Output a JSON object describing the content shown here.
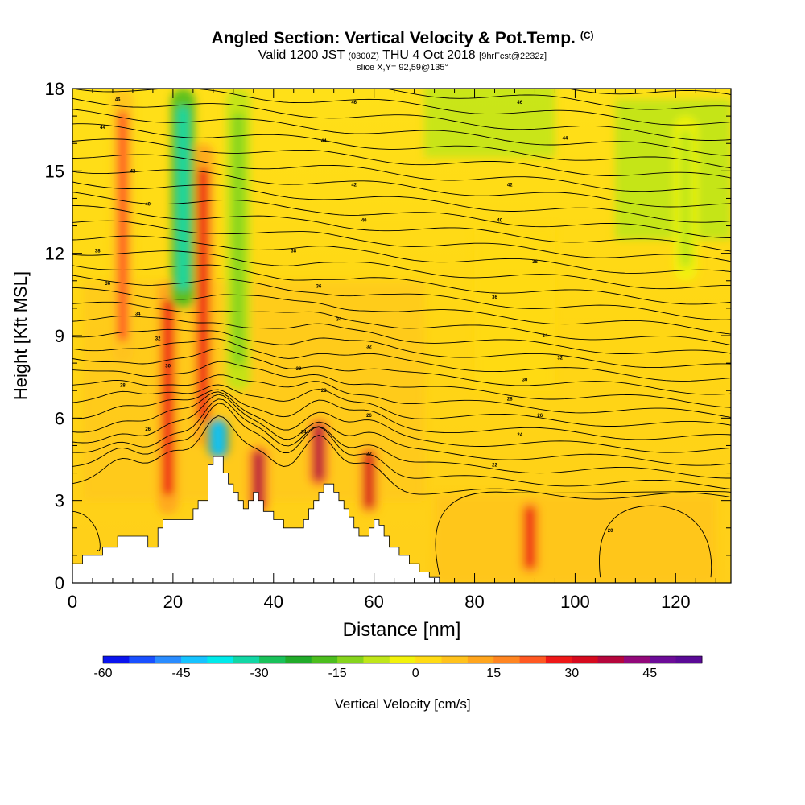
{
  "header": {
    "title_main": "Angled Section: Vertical Velocity & Pot.Temp.",
    "title_unit": "(C)",
    "valid_a": "Valid 1200 JST",
    "valid_b": "(0300Z)",
    "valid_c": "THU 4 Oct 2018",
    "valid_d": "[9hrFcst@2232z]",
    "slice": "slice X,Y= 92,59@135°"
  },
  "chart_data": {
    "type": "heatmap",
    "xlabel": "Distance [nm]",
    "ylabel": "Height [Kft MSL]",
    "xlim": [
      0,
      131
    ],
    "ylim": [
      0,
      18
    ],
    "xticks": [
      0,
      20,
      40,
      60,
      80,
      100,
      120
    ],
    "yticks": [
      0,
      3,
      6,
      9,
      12,
      15,
      18
    ],
    "colorbar": {
      "title": "Vertical Velocity [cm/s]",
      "tick_labels": [
        -60,
        -45,
        -30,
        -15,
        0,
        15,
        30,
        45
      ],
      "min": -60,
      "max": 55,
      "step": 5,
      "colors": [
        "#0a14ee",
        "#1950ff",
        "#2a8cff",
        "#16c3ff",
        "#00eaea",
        "#12d7a5",
        "#19c15a",
        "#21ab2a",
        "#4cbe1e",
        "#86d41d",
        "#bfe61a",
        "#f2f20c",
        "#ffdb14",
        "#ffc21c",
        "#ffa51d",
        "#ff8521",
        "#ff5822",
        "#ee1818",
        "#d60a1e",
        "#b5063c",
        "#92087a",
        "#6c0c98",
        "#5a0a96"
      ]
    },
    "terrain_kft": [
      [
        0,
        0.7
      ],
      [
        2,
        1.0
      ],
      [
        6,
        1.3
      ],
      [
        9,
        1.7
      ],
      [
        13,
        1.7
      ],
      [
        15,
        1.3
      ],
      [
        17,
        2.0
      ],
      [
        18,
        2.3
      ],
      [
        20,
        2.3
      ],
      [
        22,
        2.3
      ],
      [
        24,
        2.7
      ],
      [
        25,
        3.0
      ],
      [
        27,
        4.3
      ],
      [
        28,
        4.6
      ],
      [
        29,
        4.6
      ],
      [
        30,
        4.0
      ],
      [
        31,
        3.6
      ],
      [
        32,
        3.3
      ],
      [
        33,
        3.0
      ],
      [
        34,
        2.7
      ],
      [
        35,
        3.0
      ],
      [
        36,
        3.3
      ],
      [
        37,
        3.0
      ],
      [
        38,
        2.6
      ],
      [
        40,
        2.3
      ],
      [
        42,
        2.0
      ],
      [
        44,
        2.0
      ],
      [
        46,
        2.3
      ],
      [
        47,
        2.7
      ],
      [
        48,
        3.0
      ],
      [
        49,
        3.3
      ],
      [
        50,
        3.6
      ],
      [
        51,
        3.6
      ],
      [
        52,
        3.3
      ],
      [
        53,
        3.0
      ],
      [
        54,
        2.7
      ],
      [
        55,
        2.4
      ],
      [
        56,
        2.0
      ],
      [
        57,
        1.7
      ],
      [
        58,
        1.7
      ],
      [
        59,
        2.0
      ],
      [
        60,
        2.3
      ],
      [
        61,
        2.1
      ],
      [
        62,
        1.7
      ],
      [
        63,
        1.3
      ],
      [
        65,
        1.0
      ],
      [
        67,
        0.7
      ],
      [
        69,
        0.4
      ],
      [
        71,
        0.2
      ],
      [
        73,
        0.0
      ],
      [
        131,
        0.0
      ]
    ],
    "updrafts": [
      {
        "x": 10,
        "z0": 8,
        "z1": 18,
        "w": 20
      },
      {
        "x": 19,
        "z0": 2.5,
        "z1": 11,
        "w": 25
      },
      {
        "x": 26,
        "z0": 5,
        "z1": 16,
        "w": 25
      },
      {
        "x": 37,
        "z0": 2.5,
        "z1": 5,
        "w": 35
      },
      {
        "x": 49,
        "z0": 3.5,
        "z1": 6,
        "w": 35
      },
      {
        "x": 59,
        "z0": 2.5,
        "z1": 5,
        "w": 30
      },
      {
        "x": 91,
        "z0": 0.3,
        "z1": 3,
        "w": 25
      }
    ],
    "downdrafts": [
      {
        "x": 22,
        "z0": 10,
        "z1": 18,
        "w": -35
      },
      {
        "x": 29,
        "z0": 4.5,
        "z1": 6,
        "w": -45
      },
      {
        "x": 33,
        "z0": 7,
        "z1": 18,
        "w": -15
      },
      {
        "x": 122,
        "z0": 11,
        "z1": 17,
        "w": -10
      }
    ],
    "theta_labels": [
      {
        "x": 9,
        "z": 17.6,
        "text": "46"
      },
      {
        "x": 6,
        "z": 16.6,
        "text": "44"
      },
      {
        "x": 12,
        "z": 15.0,
        "text": "42"
      },
      {
        "x": 15,
        "z": 13.8,
        "text": "40"
      },
      {
        "x": 5,
        "z": 12.1,
        "text": "38"
      },
      {
        "x": 7,
        "z": 10.9,
        "text": "36"
      },
      {
        "x": 13,
        "z": 9.8,
        "text": "34"
      },
      {
        "x": 17,
        "z": 8.9,
        "text": "32"
      },
      {
        "x": 19,
        "z": 7.9,
        "text": "30"
      },
      {
        "x": 10,
        "z": 7.2,
        "text": "28"
      },
      {
        "x": 15,
        "z": 5.6,
        "text": "26"
      },
      {
        "x": 56,
        "z": 17.5,
        "text": "46"
      },
      {
        "x": 50,
        "z": 16.1,
        "text": "44"
      },
      {
        "x": 56,
        "z": 14.5,
        "text": "42"
      },
      {
        "x": 58,
        "z": 13.2,
        "text": "40"
      },
      {
        "x": 44,
        "z": 12.1,
        "text": "38"
      },
      {
        "x": 49,
        "z": 10.8,
        "text": "36"
      },
      {
        "x": 53,
        "z": 9.6,
        "text": "34"
      },
      {
        "x": 59,
        "z": 8.6,
        "text": "32"
      },
      {
        "x": 45,
        "z": 7.8,
        "text": "30"
      },
      {
        "x": 50,
        "z": 7.0,
        "text": "28"
      },
      {
        "x": 59,
        "z": 6.1,
        "text": "26"
      },
      {
        "x": 46,
        "z": 5.5,
        "text": "24"
      },
      {
        "x": 59,
        "z": 4.7,
        "text": "22"
      },
      {
        "x": 89,
        "z": 17.5,
        "text": "46"
      },
      {
        "x": 98,
        "z": 16.2,
        "text": "44"
      },
      {
        "x": 87,
        "z": 14.5,
        "text": "42"
      },
      {
        "x": 85,
        "z": 13.2,
        "text": "40"
      },
      {
        "x": 92,
        "z": 11.7,
        "text": "38"
      },
      {
        "x": 84,
        "z": 10.4,
        "text": "36"
      },
      {
        "x": 94,
        "z": 9.0,
        "text": "34"
      },
      {
        "x": 97,
        "z": 8.2,
        "text": "32"
      },
      {
        "x": 90,
        "z": 7.4,
        "text": "30"
      },
      {
        "x": 87,
        "z": 6.7,
        "text": "28"
      },
      {
        "x": 93,
        "z": 6.1,
        "text": "26"
      },
      {
        "x": 89,
        "z": 5.4,
        "text": "24"
      },
      {
        "x": 84,
        "z": 4.3,
        "text": "22"
      },
      {
        "x": 107,
        "z": 1.9,
        "text": "20"
      }
    ]
  }
}
